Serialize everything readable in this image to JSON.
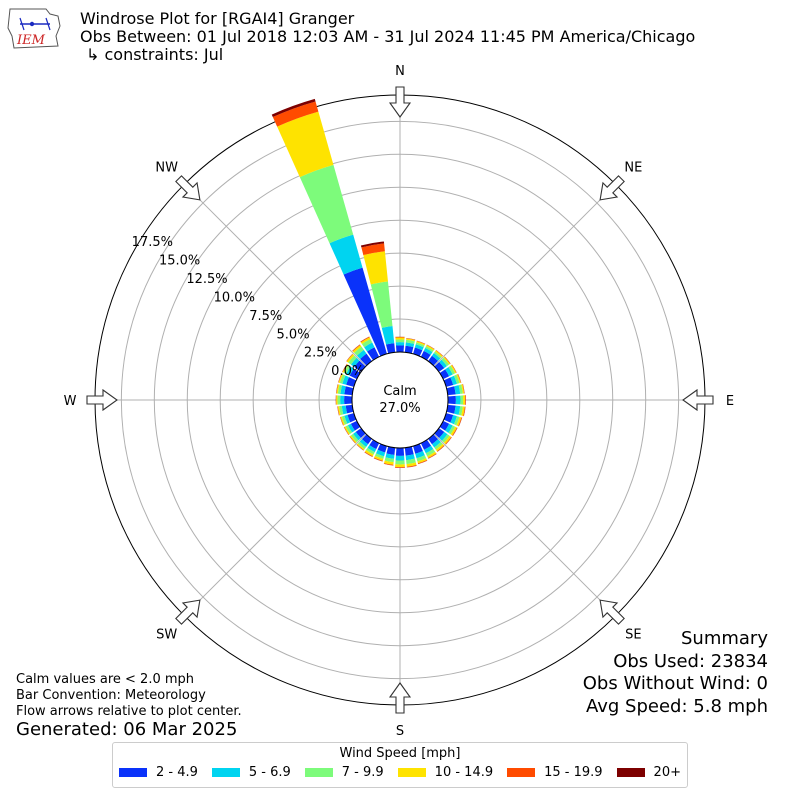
{
  "header": {
    "title": "Windrose Plot for [RGAI4] Granger",
    "obs_between": "Obs Between: 01 Jul 2018 12:03 AM - 31 Jul 2024 11:45 PM America/Chicago",
    "constraints": "↳ constraints: Jul"
  },
  "logo": {
    "text": "IEM",
    "color": "#cc2222"
  },
  "notes": {
    "calm_def": "Calm values are < 2.0 mph",
    "convention": "Bar Convention: Meteorology",
    "flow": "Flow arrows relative to plot center.",
    "generated": "Generated: 06 Mar 2025"
  },
  "summary": {
    "title": "Summary",
    "obs_used": "Obs Used: 23834",
    "obs_without_wind": "Obs Without Wind: 0",
    "avg_speed": "Avg Speed: 5.8 mph"
  },
  "legend": {
    "title": "Wind Speed [mph]",
    "items": [
      {
        "label": "2 - 4.9",
        "color": "#0a32fa"
      },
      {
        "label": "5 - 6.9",
        "color": "#00d4f0"
      },
      {
        "label": "7 - 9.9",
        "color": "#7dfb7b"
      },
      {
        "label": "10 - 14.9",
        "color": "#fee300"
      },
      {
        "label": "15 - 19.9",
        "color": "#ff4b00"
      },
      {
        "label": "20+",
        "color": "#7d0000"
      }
    ]
  },
  "chart_data": {
    "type": "windrose",
    "calm": {
      "label": "Calm",
      "value": "27.0%"
    },
    "radial_ticks": [
      "0.0%",
      "2.5%",
      "5.0%",
      "7.5%",
      "10.0%",
      "12.5%",
      "15.0%",
      "17.5%"
    ],
    "radial_tick_values": [
      0,
      2.5,
      5,
      7.5,
      10,
      12.5,
      15,
      17.5
    ],
    "rmax": 19.5,
    "compass_labels": [
      "N",
      "NE",
      "E",
      "SE",
      "S",
      "SW",
      "W",
      "NW"
    ],
    "speed_bins": [
      "2 - 4.9",
      "5 - 6.9",
      "7 - 9.9",
      "10 - 14.9",
      "15 - 19.9",
      "20+"
    ],
    "direction_step_deg": 10,
    "directions_deg": [
      0,
      10,
      20,
      30,
      40,
      50,
      60,
      70,
      80,
      90,
      100,
      110,
      120,
      130,
      140,
      150,
      160,
      170,
      180,
      190,
      200,
      210,
      220,
      230,
      240,
      250,
      260,
      270,
      280,
      290,
      300,
      310,
      320,
      330,
      340,
      350
    ],
    "series": [
      {
        "name": "2 - 4.9",
        "values": [
          0.5,
          0.5,
          0.5,
          0.5,
          0.5,
          0.5,
          0.5,
          0.55,
          0.6,
          0.6,
          0.6,
          0.55,
          0.5,
          0.5,
          0.5,
          0.55,
          0.6,
          0.6,
          0.6,
          0.55,
          0.5,
          0.5,
          0.5,
          0.5,
          0.5,
          0.5,
          0.5,
          0.6,
          0.6,
          0.6,
          0.6,
          0.65,
          0.7,
          0.8,
          6.8,
          0.7
        ]
      },
      {
        "name": "5 - 6.9",
        "values": [
          0.25,
          0.25,
          0.25,
          0.25,
          0.25,
          0.25,
          0.3,
          0.3,
          0.35,
          0.35,
          0.35,
          0.3,
          0.3,
          0.3,
          0.3,
          0.3,
          0.35,
          0.35,
          0.35,
          0.3,
          0.3,
          0.25,
          0.25,
          0.25,
          0.25,
          0.25,
          0.3,
          0.3,
          0.3,
          0.3,
          0.3,
          0.3,
          0.35,
          0.4,
          2.6,
          1.3
        ]
      },
      {
        "name": "7 - 9.9",
        "values": [
          0.2,
          0.2,
          0.15,
          0.15,
          0.15,
          0.2,
          0.2,
          0.2,
          0.2,
          0.2,
          0.2,
          0.2,
          0.2,
          0.2,
          0.2,
          0.25,
          0.25,
          0.3,
          0.3,
          0.25,
          0.2,
          0.2,
          0.2,
          0.2,
          0.2,
          0.2,
          0.2,
          0.2,
          0.2,
          0.2,
          0.2,
          0.25,
          0.3,
          0.3,
          5.5,
          3.4
        ]
      },
      {
        "name": "10 - 14.9",
        "values": [
          0.15,
          0.1,
          0.1,
          0.1,
          0.1,
          0.1,
          0.1,
          0.1,
          0.1,
          0.15,
          0.15,
          0.15,
          0.15,
          0.15,
          0.15,
          0.15,
          0.15,
          0.2,
          0.2,
          0.2,
          0.15,
          0.15,
          0.1,
          0.1,
          0.1,
          0.1,
          0.1,
          0.1,
          0.1,
          0.1,
          0.1,
          0.15,
          0.15,
          0.15,
          4.2,
          2.3
        ]
      },
      {
        "name": "15 - 19.9",
        "values": [
          0.05,
          0.03,
          0.03,
          0.03,
          0.03,
          0.03,
          0.03,
          0.03,
          0.03,
          0.05,
          0.05,
          0.05,
          0.05,
          0.05,
          0.05,
          0.05,
          0.05,
          0.05,
          0.05,
          0.05,
          0.05,
          0.05,
          0.03,
          0.03,
          0.03,
          0.03,
          0.03,
          0.03,
          0.03,
          0.03,
          0.03,
          0.03,
          0.05,
          0.05,
          0.8,
          0.6
        ]
      },
      {
        "name": "20+",
        "values": [
          0.01,
          0.01,
          0.01,
          0.01,
          0.01,
          0.01,
          0.01,
          0.01,
          0.01,
          0.01,
          0.01,
          0.01,
          0.01,
          0.01,
          0.01,
          0.01,
          0.01,
          0.01,
          0.01,
          0.01,
          0.01,
          0.01,
          0.01,
          0.01,
          0.01,
          0.01,
          0.01,
          0.01,
          0.01,
          0.01,
          0.01,
          0.01,
          0.01,
          0.01,
          0.2,
          0.15
        ]
      }
    ]
  }
}
